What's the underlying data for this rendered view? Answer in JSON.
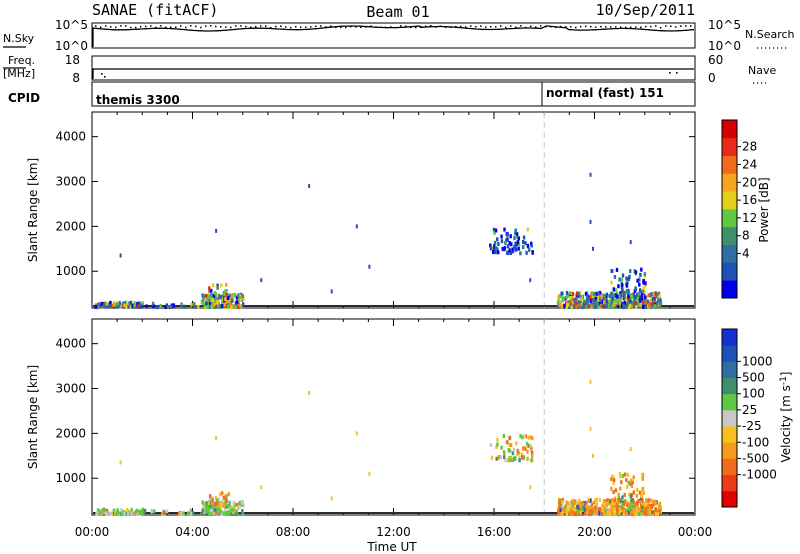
{
  "header": {
    "station": "SANAE (fitACF)",
    "beam": "Beam 01",
    "date": "10/Sep/2011"
  },
  "top_panels": {
    "nsky": {
      "label": "N.Sky",
      "ticks": [
        "10^5",
        "10^0"
      ]
    },
    "nsearch": {
      "label": "N.Search",
      "ticks": [
        "10^5",
        "10^0"
      ]
    },
    "freq": {
      "label_line1": "Freq.",
      "label_line2": "[MHz]",
      "ticks": [
        "18",
        "8"
      ]
    },
    "nave": {
      "label": "Nave",
      "ticks": [
        "60",
        "0"
      ]
    },
    "cpid": {
      "label": "CPID",
      "segments": [
        "themis 3300",
        "normal (fast) 151"
      ]
    }
  },
  "colorbars": {
    "power": {
      "label": "Power [dB]",
      "colors": [
        "#0000ee",
        "#1f50b8",
        "#2f6ea0",
        "#3d8f6e",
        "#5ec840",
        "#e6cf1a",
        "#f7a51c",
        "#f06a1a",
        "#ea2a18",
        "#d70000"
      ],
      "ticks": [
        "4",
        "8",
        "12",
        "16",
        "20",
        "24",
        "28"
      ]
    },
    "velocity": {
      "label": "Velocity [m s",
      "label_sup": "-1",
      "label_end": "]",
      "colors": [
        "#e00000",
        "#ec3a1a",
        "#f26b1c",
        "#f59a1e",
        "#f8c020",
        "#c8c8c8",
        "#5ec840",
        "#3d8f6e",
        "#2f6ea0",
        "#1f4fb8",
        "#1630d0"
      ],
      "ticks": [
        "-1000",
        "-500",
        "-100",
        "-25",
        "25",
        "100",
        "500",
        "1000"
      ]
    }
  },
  "chart_data": [
    {
      "type": "scatter",
      "name": "power-panel",
      "xlabel": "",
      "ylabel": "Slant Range [km]",
      "ylim": [
        180,
        4550
      ],
      "yticks": [
        "1000",
        "2000",
        "3000",
        "4000"
      ],
      "xlim": [
        0,
        24
      ],
      "xticks": [
        "00:00",
        "04:00",
        "08:00",
        "12:00",
        "16:00",
        "20:00",
        "00:00"
      ],
      "cpid_change_hour": 18.0,
      "clusters": [
        {
          "t0": 0.1,
          "t1": 2.0,
          "r0": 200,
          "r1": 300,
          "n": 70,
          "mix": [
            0.35,
            0.25,
            0.25,
            0.15
          ]
        },
        {
          "t0": 4.3,
          "t1": 6.0,
          "r0": 200,
          "r1": 480,
          "n": 140,
          "mix": [
            0.2,
            0.2,
            0.3,
            0.3
          ]
        },
        {
          "t0": 4.6,
          "t1": 5.4,
          "r0": 380,
          "r1": 700,
          "n": 30,
          "mix": [
            0.2,
            0.4,
            0.3,
            0.1
          ]
        },
        {
          "t0": 2.0,
          "t1": 4.3,
          "r0": 200,
          "r1": 280,
          "n": 20,
          "mix": [
            0.5,
            0.3,
            0.2,
            0.0
          ]
        },
        {
          "t0": 15.8,
          "t1": 17.5,
          "r0": 1400,
          "r1": 1950,
          "n": 70,
          "mix": [
            0.7,
            0.2,
            0.1,
            0.0
          ]
        },
        {
          "t0": 18.5,
          "t1": 22.6,
          "r0": 200,
          "r1": 520,
          "n": 420,
          "mix": [
            0.15,
            0.3,
            0.3,
            0.25
          ]
        },
        {
          "t0": 20.6,
          "t1": 22.0,
          "r0": 400,
          "r1": 1100,
          "n": 70,
          "mix": [
            0.5,
            0.3,
            0.2,
            0.0
          ]
        }
      ],
      "isolated": [
        [
          1.1,
          1350
        ],
        [
          4.9,
          1900
        ],
        [
          8.6,
          2900
        ],
        [
          10.5,
          2000
        ],
        [
          11.0,
          1100
        ],
        [
          9.5,
          550
        ],
        [
          19.8,
          3150
        ],
        [
          19.8,
          2100
        ],
        [
          19.9,
          1500
        ],
        [
          17.4,
          800
        ],
        [
          6.7,
          800
        ],
        [
          21.4,
          1650
        ]
      ]
    },
    {
      "type": "scatter",
      "name": "velocity-panel",
      "xlabel": "Time UT",
      "ylabel": "Slant Range [km]",
      "ylim": [
        180,
        4550
      ],
      "yticks": [
        "1000",
        "2000",
        "3000",
        "4000"
      ],
      "xlim": [
        0,
        24
      ],
      "xticks": [
        "00:00",
        "04:00",
        "08:00",
        "12:00",
        "16:00",
        "20:00",
        "00:00"
      ],
      "cpid_change_hour": 18.0,
      "clusters": [
        {
          "t0": 0.1,
          "t1": 2.0,
          "r0": 200,
          "r1": 300,
          "n": 70,
          "mix": [
            0.45,
            0.35,
            0.2,
            0.0
          ]
        },
        {
          "t0": 4.3,
          "t1": 6.0,
          "r0": 200,
          "r1": 480,
          "n": 140,
          "mix": [
            0.45,
            0.35,
            0.2,
            0.0
          ]
        },
        {
          "t0": 4.6,
          "t1": 5.4,
          "r0": 380,
          "r1": 700,
          "n": 30,
          "mix": [
            0.2,
            0.2,
            0.6,
            0.0
          ]
        },
        {
          "t0": 2.0,
          "t1": 4.3,
          "r0": 200,
          "r1": 280,
          "n": 20,
          "mix": [
            0.5,
            0.3,
            0.2,
            0.0
          ]
        },
        {
          "t0": 15.8,
          "t1": 17.5,
          "r0": 1400,
          "r1": 1950,
          "n": 70,
          "mix": [
            0.3,
            0.2,
            0.5,
            0.0
          ]
        },
        {
          "t0": 18.5,
          "t1": 22.6,
          "r0": 200,
          "r1": 520,
          "n": 420,
          "mix": [
            0.05,
            0.1,
            0.8,
            0.05
          ]
        },
        {
          "t0": 20.6,
          "t1": 22.0,
          "r0": 400,
          "r1": 1100,
          "n": 70,
          "mix": [
            0.05,
            0.1,
            0.8,
            0.05
          ]
        }
      ],
      "isolated": [
        [
          1.1,
          1350
        ],
        [
          4.9,
          1900
        ],
        [
          8.6,
          2900
        ],
        [
          10.5,
          2000
        ],
        [
          11.0,
          1100
        ],
        [
          9.5,
          550
        ],
        [
          19.8,
          3150
        ],
        [
          19.8,
          2100
        ],
        [
          19.9,
          1500
        ],
        [
          17.4,
          800
        ],
        [
          6.7,
          800
        ],
        [
          21.4,
          1650
        ]
      ]
    }
  ]
}
